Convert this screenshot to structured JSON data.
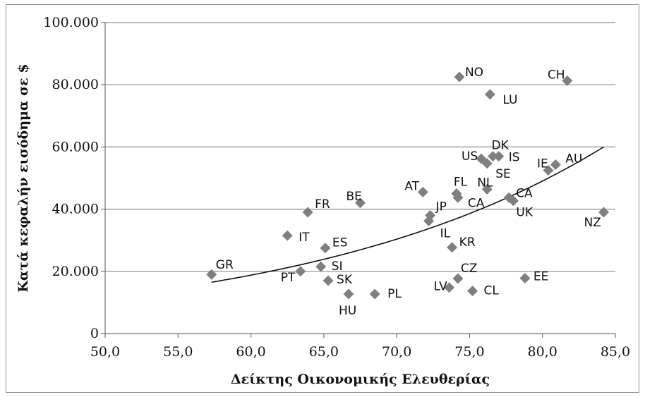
{
  "chart_data": {
    "type": "scatter",
    "title": "",
    "xlabel": "Δείκτης Οικονομικής Ελευθερίας",
    "ylabel": "Κατά κεφαλήν εισόδημα σε $",
    "xlim": [
      50,
      85
    ],
    "ylim": [
      0,
      100000
    ],
    "x_ticks": [
      "50,0",
      "55,0",
      "60,0",
      "65,0",
      "70,0",
      "75,0",
      "80,0",
      "85,0"
    ],
    "y_ticks": [
      "0",
      "20.000",
      "40.000",
      "60.000",
      "80.000",
      "100.000"
    ],
    "x_tick_values": [
      50,
      55,
      60,
      65,
      70,
      75,
      80,
      85
    ],
    "y_tick_values": [
      0,
      20000,
      40000,
      60000,
      80000,
      100000
    ],
    "grid": "horizontal",
    "legend": "none",
    "marker": "diamond",
    "marker_color": "#7f7f7f",
    "trendline": {
      "type": "exponential",
      "x_range": [
        57.3,
        84.2
      ],
      "y_range": [
        16500,
        60000
      ]
    },
    "points": [
      {
        "label": "GR",
        "x": 57.3,
        "y": 19000
      },
      {
        "label": "IT",
        "x": 62.5,
        "y": 31500
      },
      {
        "label": "FR",
        "x": 63.9,
        "y": 39000
      },
      {
        "label": "PT",
        "x": 63.4,
        "y": 20000
      },
      {
        "label": "SI",
        "x": 64.8,
        "y": 21500
      },
      {
        "label": "ES",
        "x": 65.1,
        "y": 27500
      },
      {
        "label": "SK",
        "x": 65.3,
        "y": 17000
      },
      {
        "label": "HU",
        "x": 66.7,
        "y": 12700
      },
      {
        "label": "BE",
        "x": 67.5,
        "y": 42000
      },
      {
        "label": "PL",
        "x": 68.5,
        "y": 12700
      },
      {
        "label": "AT",
        "x": 71.8,
        "y": 45500
      },
      {
        "label": "JP",
        "x": 72.3,
        "y": 38000
      },
      {
        "label": "IL",
        "x": 72.2,
        "y": 36200
      },
      {
        "label": "LV",
        "x": 73.6,
        "y": 14800
      },
      {
        "label": "KR",
        "x": 73.8,
        "y": 27700
      },
      {
        "label": "FL",
        "x": 74.1,
        "y": 45000
      },
      {
        "label": "CA",
        "x": 74.2,
        "y": 43700
      },
      {
        "label": "CZ",
        "x": 74.2,
        "y": 17700
      },
      {
        "label": "NO",
        "x": 74.3,
        "y": 82500
      },
      {
        "label": "CL",
        "x": 75.2,
        "y": 13700
      },
      {
        "label": "US",
        "x": 75.8,
        "y": 56200
      },
      {
        "label": "SE",
        "x": 76.2,
        "y": 54700
      },
      {
        "label": "NL",
        "x": 76.2,
        "y": 46400
      },
      {
        "label": "LU",
        "x": 76.4,
        "y": 76900
      },
      {
        "label": "DK",
        "x": 76.6,
        "y": 57000
      },
      {
        "label": "IS",
        "x": 77.0,
        "y": 57000
      },
      {
        "label": "CA",
        "x": 77.7,
        "y": 43700
      },
      {
        "label": "UK",
        "x": 78.0,
        "y": 42700
      },
      {
        "label": "EE",
        "x": 78.8,
        "y": 17800
      },
      {
        "label": "IE",
        "x": 80.4,
        "y": 52500
      },
      {
        "label": "AU",
        "x": 80.9,
        "y": 54300
      },
      {
        "label": "CH",
        "x": 81.7,
        "y": 81300
      },
      {
        "label": "NZ",
        "x": 84.2,
        "y": 39000
      }
    ]
  }
}
